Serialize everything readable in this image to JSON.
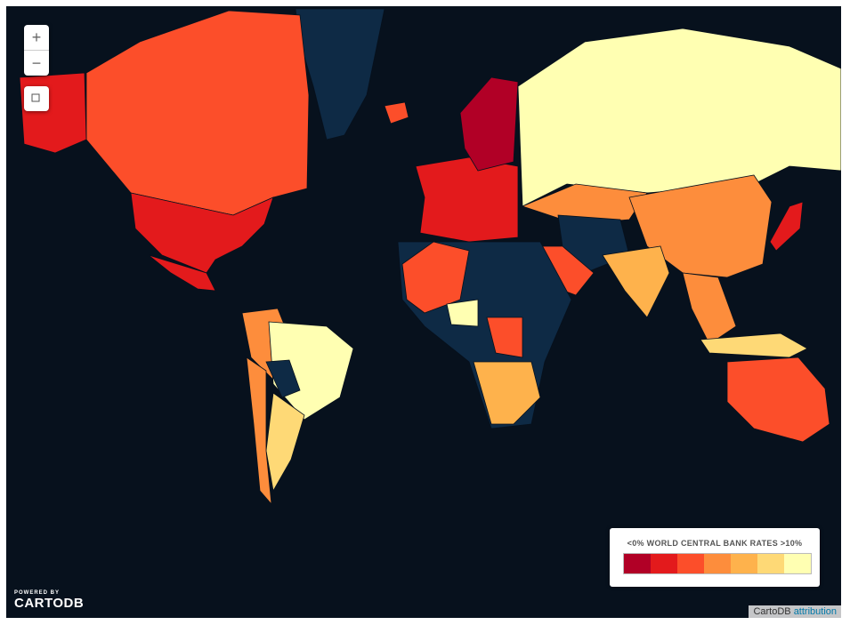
{
  "map": {
    "zoom_in": "+",
    "zoom_out": "−",
    "legend": {
      "min_label": "<0%",
      "title": "WORLD CENTRAL BANK RATES",
      "max_label": ">10%",
      "colors": [
        "#b10026",
        "#e31a1c",
        "#fc4e2a",
        "#fd8d3c",
        "#feb24c",
        "#fed976",
        "#ffffb2"
      ]
    },
    "branding": {
      "powered_by": "POWERED BY",
      "logo": "CARTODB"
    },
    "attribution": {
      "source": "CartoDB",
      "link": "attribution"
    }
  }
}
